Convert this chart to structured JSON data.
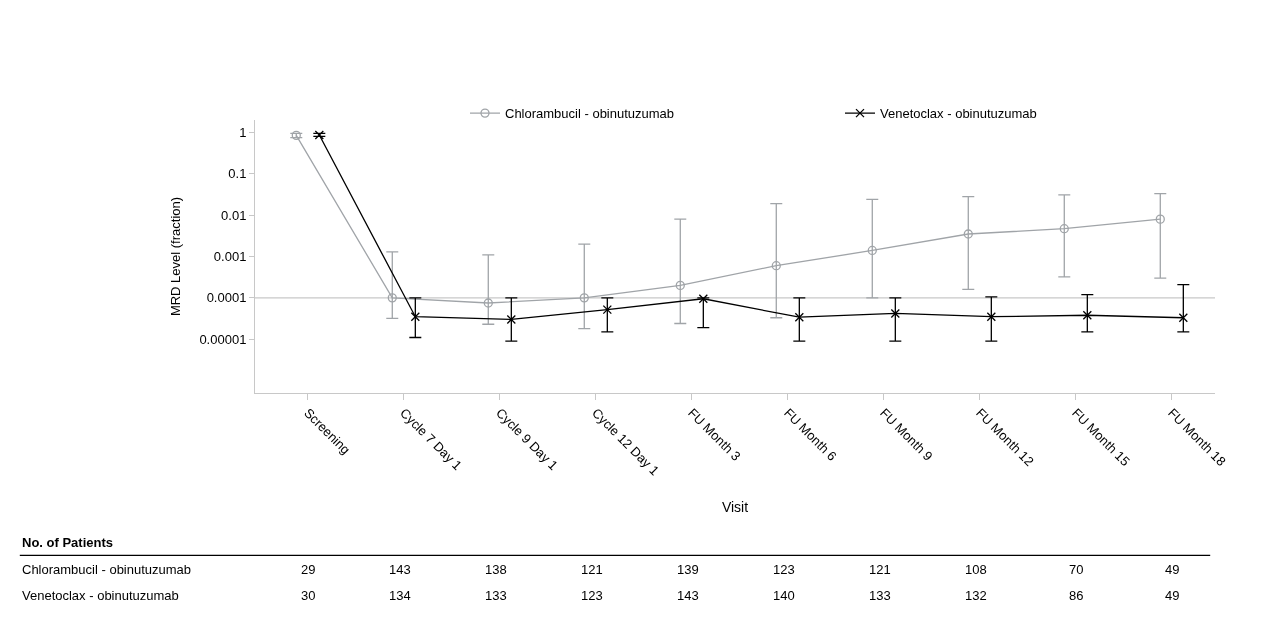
{
  "chart_data": {
    "type": "line",
    "xlabel": "Visit",
    "ylabel": "MRD Level (fraction)",
    "categories": [
      "Screening",
      "Cycle 7 Day 1",
      "Cycle 9 Day 1",
      "Cycle 12 Day 1",
      "FU Month 3",
      "FU Month 6",
      "FU Month 9",
      "FU Month 12",
      "FU Month 15",
      "FU Month 18"
    ],
    "series": [
      {
        "name": "Chlorambucil - obinutuzumab",
        "color": "#a0a4a8",
        "marker": "circle",
        "values": [
          0.85,
          0.0001,
          7.5e-05,
          0.0001,
          0.0002,
          0.0006,
          0.0014,
          0.0035,
          0.0047,
          0.008
        ],
        "errors": [
          [
            0.75,
            0.95
          ],
          [
            3.2e-05,
            0.0013
          ],
          [
            2.3e-05,
            0.0011
          ],
          [
            1.8e-05,
            0.002
          ],
          [
            2.4e-05,
            0.008
          ],
          [
            3.3e-05,
            0.019
          ],
          [
            0.0001,
            0.024
          ],
          [
            0.00016,
            0.028
          ],
          [
            0.00032,
            0.031
          ],
          [
            0.0003,
            0.033
          ]
        ]
      },
      {
        "name": "Venetoclax - obinutuzumab",
        "color": "#000000",
        "marker": "cross",
        "values": [
          0.87,
          3.5e-05,
          3e-05,
          5.2e-05,
          9.5e-05,
          3.4e-05,
          4.2e-05,
          3.5e-05,
          3.8e-05,
          3.3e-05
        ],
        "errors": [
          [
            0.8,
            0.95
          ],
          [
            1.1e-05,
            0.0001
          ],
          [
            9e-06,
            0.0001
          ],
          [
            1.5e-05,
            0.0001
          ],
          [
            1.9e-05,
            0.0001
          ],
          [
            9e-06,
            0.0001
          ],
          [
            9e-06,
            0.0001
          ],
          [
            9e-06,
            0.000105
          ],
          [
            1.5e-05,
            0.00012
          ],
          [
            1.5e-05,
            0.00021
          ]
        ]
      }
    ],
    "log": true,
    "ylim": [
      5e-07,
      2
    ],
    "yticks": [
      {
        "value": 1,
        "label": "1"
      },
      {
        "value": 0.1,
        "label": "0.1"
      },
      {
        "value": 0.01,
        "label": "0.01"
      },
      {
        "value": 0.001,
        "label": "0.001"
      },
      {
        "value": 0.0001,
        "label": "0.0001"
      },
      {
        "value": 1e-05,
        "label": "0.00001"
      }
    ],
    "ref_lines": [
      {
        "axis": "y",
        "value": 0.0001,
        "color": "#c8c8c8"
      }
    ],
    "grid": false,
    "legend": "top right",
    "annotations": [
      "No. of Patients",
      "Chlorambucil - obinutuzumab",
      "29",
      "143",
      "138",
      "121",
      "139",
      "123",
      "121",
      "108",
      "70",
      "49",
      "Venetoclax - obinutuzumab",
      "30",
      "134",
      "133",
      "123",
      "143",
      "140",
      "133",
      "132",
      "86",
      "49"
    ]
  }
}
